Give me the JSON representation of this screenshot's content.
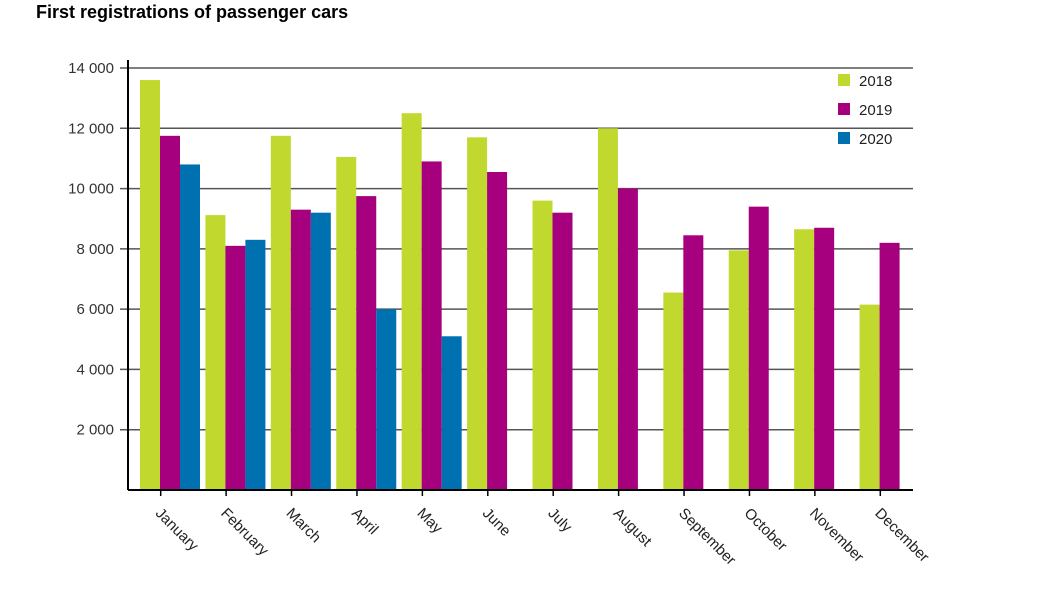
{
  "chart_data": {
    "type": "bar",
    "title": "First registrations of passenger cars",
    "xlabel": "",
    "ylabel": "",
    "ylim": [
      0,
      14000
    ],
    "yticks": [
      2000,
      4000,
      6000,
      8000,
      10000,
      12000,
      14000
    ],
    "ytick_labels": [
      "2 000",
      "4 000",
      "6 000",
      "8 000",
      "10 000",
      "12 000",
      "14 000"
    ],
    "grid": true,
    "legend_position": "top-right",
    "categories": [
      "January",
      "February",
      "March",
      "April",
      "May",
      "June",
      "July",
      "August",
      "September",
      "October",
      "November",
      "December"
    ],
    "series": [
      {
        "name": "2018",
        "color": "#c1d82f",
        "values": [
          13600,
          9120,
          11750,
          11050,
          12500,
          11700,
          9600,
          12000,
          6550,
          7950,
          8650,
          6150
        ]
      },
      {
        "name": "2019",
        "color": "#a6007f",
        "values": [
          11750,
          8100,
          9300,
          9750,
          10900,
          10550,
          9200,
          10000,
          8450,
          9400,
          8700,
          8200
        ]
      },
      {
        "name": "2020",
        "color": "#0071b0",
        "values": [
          10800,
          8300,
          9200,
          6000,
          5100,
          null,
          null,
          null,
          null,
          null,
          null,
          null
        ]
      }
    ]
  }
}
